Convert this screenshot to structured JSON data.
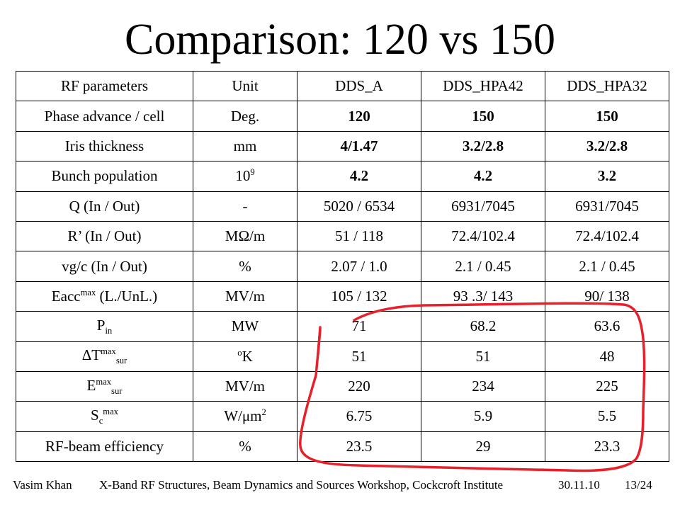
{
  "title": "Comparison: 120 vs 150",
  "table": {
    "header": [
      "RF parameters",
      "Unit",
      "DDS_A",
      "DDS_HPA42",
      "DDS_HPA32"
    ],
    "rows": [
      {
        "param": "Phase advance / cell",
        "unit": "Deg.",
        "a": "120",
        "b": "150",
        "c": "150"
      },
      {
        "param": "Iris thickness",
        "unit": "mm",
        "a": "4/1.47",
        "b": "3.2/2.8",
        "c": "3.2/2.8"
      },
      {
        "param": "Bunch population",
        "unit_base": "10",
        "unit_sup": "9",
        "a": "4.2",
        "b": "4.2",
        "c": "3.2"
      },
      {
        "param": "Q (In / Out)",
        "unit": "-",
        "a": "5020 / 6534",
        "b": "6931/7045",
        "c": "6931/7045"
      },
      {
        "param": "R’ (In / Out)",
        "unit": "MΩ/m",
        "a": "51 / 118",
        "b": "72.4/102.4",
        "c": "72.4/102.4"
      },
      {
        "param": "vg/c (In / Out)",
        "unit": "%",
        "a": "2.07 / 1.0",
        "b": "2.1 / 0.45",
        "c": "2.1 / 0.45"
      },
      {
        "param_base": "Eacc",
        "param_sup": "max",
        "param_rest": " (L./UnL.)",
        "unit": "MV/m",
        "a": "105 / 132",
        "b": "93 .3/ 143",
        "c": "90/ 138"
      },
      {
        "param_base": "P",
        "param_sub": "in",
        "unit": "MW",
        "a": "71",
        "b": "68.2",
        "c": "63.6"
      },
      {
        "param_base": "ΔT",
        "param_sup": "max",
        "param_sub": "sur",
        "unit_sup": "o",
        "unit_base": "K",
        "a": "51",
        "b": "51",
        "c": "48"
      },
      {
        "param_base": "E",
        "param_sup": "max",
        "param_sub": "sur",
        "unit": "MV/m",
        "a": "220",
        "b": "234",
        "c": "225"
      },
      {
        "param_base": "S",
        "param_sub": "c",
        "param_sup": "max",
        "unit_base": "W/μm",
        "unit_sup": "2",
        "a": "6.75",
        "b": "5.9",
        "c": "5.5"
      },
      {
        "param": "RF-beam efficiency",
        "unit": "%",
        "a": "23.5",
        "b": "29",
        "c": "23.3"
      }
    ]
  },
  "footer": {
    "author": "Vasim Khan",
    "event": "X-Band RF Structures, Beam Dynamics and Sources Workshop, Cockcroft Institute",
    "date": "30.11.10",
    "page": "13/24"
  },
  "annotation_color": "#e8202a"
}
